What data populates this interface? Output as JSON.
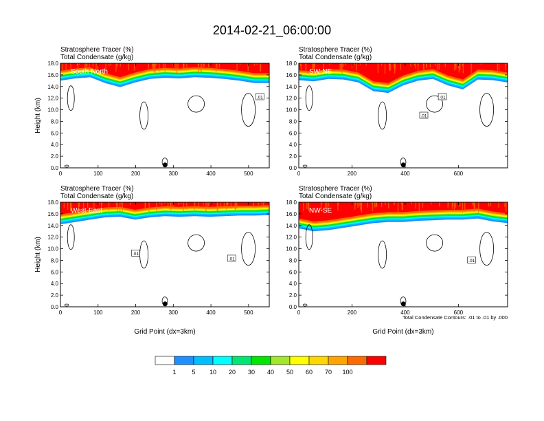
{
  "figure": {
    "title": "2014-02-21_06:00:00",
    "contour_note": "Total Condensate Contours: .01 to .01 by .000",
    "contour_label": ".01"
  },
  "colors": {
    "ramp": [
      "#ffffff",
      "#1e90ff",
      "#00bfff",
      "#00ffff",
      "#00e673",
      "#00e600",
      "#a3e62e",
      "#ffff00",
      "#ffd700",
      "#ffa500",
      "#ff6a00",
      "#ff0000"
    ],
    "contour": "#000000"
  },
  "legend": {
    "type": "colorbar",
    "placement": "bottom-center",
    "levels": [
      "1",
      "5",
      "10",
      "20",
      "30",
      "40",
      "50",
      "60",
      "70",
      "100"
    ]
  },
  "chart_data": [
    {
      "type": "heatmap",
      "panel": "top-left",
      "header_lines": [
        "Stratosphere Tracer   (%)",
        "Total Condensate   (g/kg)"
      ],
      "cross_section": "South-North",
      "ylabel": "Height (km)",
      "xlabel": "",
      "x_ticks": [
        "0",
        "100",
        "200",
        "300",
        "400",
        "500"
      ],
      "y_ticks": [
        "0.0",
        "2.0",
        "4.0",
        "6.0",
        "8.0",
        "10.0",
        "12.0",
        "14.0",
        "16.0",
        "18.0"
      ],
      "xlim": [
        0,
        555
      ],
      "ylim": [
        0,
        18
      ],
      "marker_x": 278,
      "tracer_base_km": [
        15.0,
        15.4,
        15.6,
        14.6,
        13.9,
        14.7,
        15.3,
        15.5,
        15.4,
        15.6,
        15.5,
        15.3,
        15.0,
        14.6,
        14.6
      ],
      "contour_labels_at": [
        [
          530,
          12.2
        ]
      ]
    },
    {
      "type": "heatmap",
      "panel": "top-right",
      "header_lines": [
        "Stratosphere Tracer   (%)",
        "Total Condensate   (g/kg)"
      ],
      "cross_section": "SW-NE",
      "ylabel": "",
      "xlabel": "",
      "x_ticks": [
        "0",
        "200",
        "400",
        "600"
      ],
      "y_ticks": [
        "0.0",
        "2.0",
        "4.0",
        "6.0",
        "8.0",
        "10.0",
        "12.0",
        "14.0",
        "16.0",
        "18.0"
      ],
      "xlim": [
        0,
        785
      ],
      "ylim": [
        0,
        18
      ],
      "marker_x": 393,
      "tracer_base_km": [
        15.1,
        14.9,
        15.3,
        15.2,
        14.7,
        13.2,
        12.9,
        14.2,
        15.0,
        15.3,
        14.2,
        13.5,
        15.2,
        15.1,
        14.7
      ],
      "contour_labels_at": [
        [
          470,
          9.0
        ],
        [
          540,
          12.2
        ]
      ]
    },
    {
      "type": "heatmap",
      "panel": "bottom-left",
      "header_lines": [
        "Stratosphere Tracer   (%)",
        "Total Condensate   (g/kg)"
      ],
      "cross_section": "West-East",
      "ylabel": "Height (km)",
      "xlabel": "Grid Point (dx=3km)",
      "x_ticks": [
        "0",
        "100",
        "200",
        "300",
        "400",
        "500"
      ],
      "y_ticks": [
        "0.0",
        "2.0",
        "4.0",
        "6.0",
        "8.0",
        "10.0",
        "12.0",
        "14.0",
        "16.0",
        "18.0"
      ],
      "xlim": [
        0,
        555
      ],
      "ylim": [
        0,
        18
      ],
      "marker_x": 278,
      "tracer_base_km": [
        14.2,
        14.6,
        15.0,
        15.4,
        15.5,
        15.0,
        15.4,
        15.6,
        15.5,
        15.6,
        15.5,
        15.6,
        15.7,
        15.7,
        15.8
      ],
      "contour_labels_at": [
        [
          200,
          9.2
        ],
        [
          455,
          8.3
        ]
      ]
    },
    {
      "type": "heatmap",
      "panel": "bottom-right",
      "header_lines": [
        "Stratosphere Tracer   (%)",
        "Total Condensate   (g/kg)"
      ],
      "cross_section": "NW-SE",
      "ylabel": "",
      "xlabel": "Grid Point (dx=3km)",
      "x_ticks": [
        "0",
        "200",
        "400",
        "600"
      ],
      "y_ticks": [
        "0.0",
        "2.0",
        "4.0",
        "6.0",
        "8.0",
        "10.0",
        "12.0",
        "14.0",
        "16.0",
        "18.0"
      ],
      "xlim": [
        0,
        785
      ],
      "ylim": [
        0,
        18
      ],
      "marker_x": 393,
      "tracer_base_km": [
        13.5,
        13.0,
        13.2,
        13.6,
        14.0,
        14.4,
        14.6,
        14.6,
        14.8,
        14.9,
        15.0,
        15.0,
        15.2,
        14.7,
        14.4
      ],
      "contour_labels_at": [
        [
          650,
          8.0
        ]
      ]
    }
  ]
}
